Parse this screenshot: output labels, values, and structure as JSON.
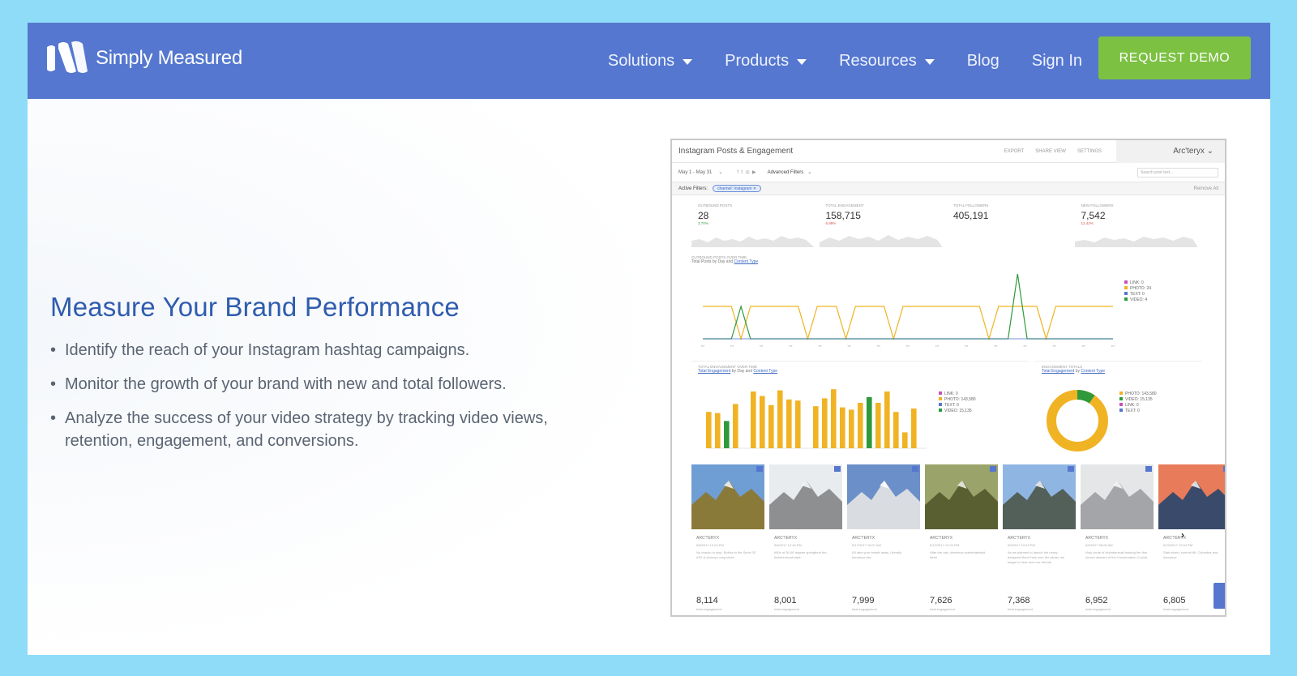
{
  "header": {
    "brand": "Simply Measured",
    "nav": [
      {
        "label": "Solutions",
        "has_caret": true
      },
      {
        "label": "Products",
        "has_caret": true
      },
      {
        "label": "Resources",
        "has_caret": true
      },
      {
        "label": "Blog",
        "has_caret": false
      },
      {
        "label": "Sign In",
        "has_caret": false
      }
    ],
    "cta": "REQUEST DEMO"
  },
  "main": {
    "headline": "Measure Your Brand Performance",
    "bullets": [
      "Identify the reach of your Instagram hashtag campaigns.",
      "Monitor the growth of your brand with new and total followers.",
      "Analyze the success of your video strategy by tracking video views, retention, engagement, and conversions."
    ]
  },
  "dashboard": {
    "title": "Instagram Posts & Engagement",
    "actions": [
      "EXPORT",
      "SHARE VIEW",
      "SETTINGS"
    ],
    "account": "Arc'teryx",
    "date_range": "May 1 - May 31",
    "advanced_filters": "Advanced Filters",
    "active_filters_label": "Active Filters:",
    "filter_chip": "channel: Instagram",
    "remove_all": "Remove All",
    "search_placeholder": "Search post text...",
    "kpis": [
      {
        "label": "OUTBOUND POSTS",
        "value": "28",
        "delta": "3.70%",
        "delta_color": "#3aa14a"
      },
      {
        "label": "TOTAL ENGAGEMENT",
        "value": "158,715",
        "delta": "6.99%",
        "delta_color": "#d9534f"
      },
      {
        "label": "TOTAL FOLLOWERS",
        "value": "405,191",
        "delta": "",
        "delta_color": "#999999"
      },
      {
        "label": "NEW FOLLOWERS",
        "value": "7,542",
        "delta": "12.42%",
        "delta_color": "#d9534f"
      }
    ],
    "outbound_chart": {
      "caption": "OUTBOUND POSTS OVER TIME",
      "subtitle_prefix": "Total Posts by Day and",
      "subtitle_link": "Content Type",
      "legend": [
        {
          "label": "LINK: 0",
          "color": "#cc4fb4"
        },
        {
          "label": "PHOTO: 24",
          "color": "#f0b323"
        },
        {
          "label": "TEXT: 0",
          "color": "#5577cf"
        },
        {
          "label": "VIDEO: 4",
          "color": "#2e9a3c"
        }
      ]
    },
    "engagement_chart": {
      "caption": "TOTAL ENGAGEMENT OVER TIME",
      "subtitle_link1": "Total Engagement",
      "subtitle_mid": "by Day and",
      "subtitle_link2": "Content Type",
      "legend": [
        {
          "label": "LINK: 0",
          "color": "#cc4fb4"
        },
        {
          "label": "PHOTO: 143,580",
          "color": "#f0b323"
        },
        {
          "label": "TEXT: 0",
          "color": "#5577cf"
        },
        {
          "label": "VIDEO: 15,135",
          "color": "#2e9a3c"
        }
      ]
    },
    "engagement_totals": {
      "caption": "ENGAGEMENT TOTALS",
      "subtitle_link1": "Total Engagement",
      "subtitle_mid": "by",
      "subtitle_link2": "Content Type",
      "legend": [
        {
          "label": "PHOTO: 143,580",
          "color": "#f0b323"
        },
        {
          "label": "VIDEO: 15,135",
          "color": "#2e9a3c"
        },
        {
          "label": "LINK: 0",
          "color": "#cc4fb4"
        },
        {
          "label": "TEXT: 0",
          "color": "#5577cf"
        }
      ]
    },
    "posts": [
      {
        "brand": "ARC'TERYX",
        "date": "5/8/2017 12:04 PM",
        "text": "No reason to stop. Bolivia in the Serie SE eSX & Arcteryx crag shots.",
        "value": "8,114",
        "label": "total engagement",
        "sky": "#6f9ed4",
        "ground": "#8a7a3a"
      },
      {
        "brand": "ARC'TERYX",
        "date": "5/6/2017 12:46 PM",
        "text": "#50n of 50-60 degree springtime fun, #climbnrecall style.",
        "value": "8,001",
        "label": "total engagement",
        "sky": "#e9ecef",
        "ground": "#8e8f91"
      },
      {
        "brand": "ARC'TERYX",
        "date": "5/17/2017 10:07 AM",
        "text": "It'll take your breath away. Literally #arcteryx #bc",
        "value": "7,999",
        "label": "total engagement",
        "sky": "#6b8fc8",
        "ground": "#d9dde2"
      },
      {
        "brand": "ARC'TERYX",
        "date": "5/12/2017 12:04 PM",
        "text": "After the rain. #arcteryx #celebratewild #tree",
        "value": "7,626",
        "label": "total engagement",
        "sky": "#9aa46a",
        "ground": "#5a5f32"
      },
      {
        "brand": "ARC'TERYX",
        "date": "5/5/2017 12:04 PM",
        "text": "As we planned to launch the newly designed Bora Pack over the winter, we began to hear from our friends.",
        "value": "7,368",
        "label": "total engagement",
        "sky": "#8fb6e3",
        "ground": "#53605a"
      },
      {
        "brand": "ARC'TERYX",
        "date": "5/9/2017 08:05 AM",
        "text": "Holy chute of #climbnrecall making the first known descent of the Conservation Couloir.",
        "value": "6,952",
        "label": "total engagement",
        "sky": "#e4e6e8",
        "ground": "#a3a5a8"
      },
      {
        "brand": "ARC'TERYX",
        "date": "5/23/2017 12:04 PM",
        "text": "Start storm, summit Mt. Columbia and #arcteryx",
        "value": "6,805",
        "label": "total engagement",
        "sky": "#e87b5a",
        "ground": "#3a4a6a"
      }
    ]
  },
  "colors": {
    "header_bg": "#5577cf",
    "cta_bg": "#7cc142",
    "headline": "#2f5cae",
    "photo": "#f0b323",
    "video": "#2e9a3c",
    "page_bg": "#8fdcf8"
  }
}
